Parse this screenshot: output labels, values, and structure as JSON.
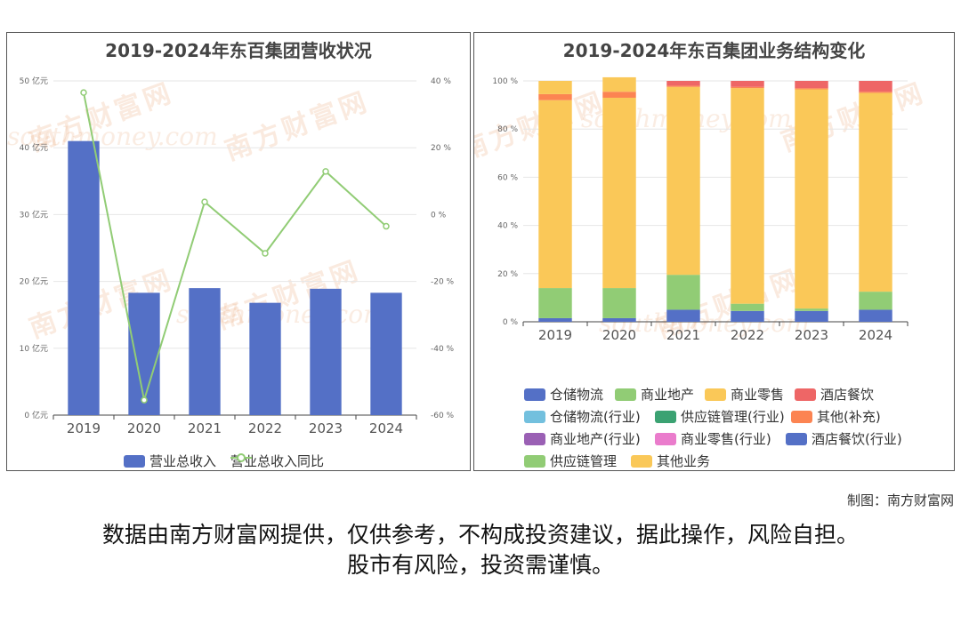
{
  "left_chart": {
    "title": "2019-2024年东百集团营收状况",
    "legend": {
      "bar": "营业总收入",
      "line": "营业总收入同比"
    },
    "colors": {
      "bar": "#5470c6",
      "line": "#91cc75"
    }
  },
  "right_chart": {
    "title": "2019-2024年东百集团业务结构变化",
    "legend": [
      {
        "label": "仓储物流",
        "color": "#5470c6"
      },
      {
        "label": "商业地产",
        "color": "#91cc75"
      },
      {
        "label": "商业零售",
        "color": "#fac858"
      },
      {
        "label": "酒店餐饮",
        "color": "#ee6666"
      },
      {
        "label": "仓储物流(行业)",
        "color": "#73c0de"
      },
      {
        "label": "供应链管理(行业)",
        "color": "#3ba272"
      },
      {
        "label": "其他(补充)",
        "color": "#fc8452"
      },
      {
        "label": "商业地产(行业)",
        "color": "#9a60b4"
      },
      {
        "label": "商业零售(行业)",
        "color": "#ea7ccc"
      },
      {
        "label": "酒店餐饮(行业)",
        "color": "#5470c6"
      },
      {
        "label": "供应链管理",
        "color": "#91cc75"
      },
      {
        "label": "其他业务",
        "color": "#fac858"
      }
    ]
  },
  "chart_data": [
    {
      "type": "bar",
      "title": "2019-2024年东百集团营收状况",
      "categories": [
        "2019",
        "2020",
        "2021",
        "2022",
        "2023",
        "2024"
      ],
      "series": [
        {
          "name": "营业总收入",
          "type": "bar",
          "axis": "left",
          "values": [
            41.0,
            18.3,
            19.0,
            16.8,
            18.9,
            18.3
          ]
        },
        {
          "name": "营业总收入同比",
          "type": "line",
          "axis": "right",
          "values": [
            36.5,
            -55.5,
            3.8,
            -11.6,
            12.9,
            -3.5
          ]
        }
      ],
      "y_left": {
        "ticks": [
          "0 亿元",
          "10 亿元",
          "20 亿元",
          "30 亿元",
          "40 亿元",
          "50 亿元"
        ],
        "ylim": [
          0,
          50
        ]
      },
      "y_right": {
        "ticks": [
          "-60 %",
          "-40 %",
          "-20 %",
          "0 %",
          "20 %",
          "40 %"
        ],
        "ylim": [
          -60,
          40
        ]
      },
      "grid": true,
      "legend_position": "bottom"
    },
    {
      "type": "bar",
      "stacked": true,
      "title": "2019-2024年东百集团业务结构变化",
      "categories": [
        "2019",
        "2020",
        "2021",
        "2022",
        "2023",
        "2024"
      ],
      "series": [
        {
          "name": "仓储物流",
          "color": "#5470c6",
          "values": [
            1.5,
            1.5,
            0,
            0,
            0,
            0
          ]
        },
        {
          "name": "商业地产",
          "color": "#91cc75",
          "values": [
            12.5,
            12.5,
            0,
            0,
            0,
            0
          ]
        },
        {
          "name": "商业零售",
          "color": "#fac858",
          "values": [
            78.0,
            79.0,
            0,
            0,
            0,
            0
          ]
        },
        {
          "name": "酒店餐饮",
          "color": "#ee6666",
          "values": [
            0,
            0,
            0,
            0,
            0,
            0
          ]
        },
        {
          "name": "仓储物流(行业)",
          "color": "#73c0de",
          "values": [
            0,
            0,
            0,
            0,
            0,
            0
          ]
        },
        {
          "name": "供应链管理(行业)",
          "color": "#3ba272",
          "values": [
            0,
            0,
            0,
            0,
            0,
            0
          ]
        },
        {
          "name": "其他(补充)",
          "color": "#fc8452",
          "values": [
            2.5,
            2.5,
            0,
            0,
            0,
            0
          ]
        },
        {
          "name": "商业地产(行业)",
          "color": "#9a60b4",
          "values": [
            0,
            0,
            0,
            0,
            0,
            0
          ]
        },
        {
          "name": "商业零售(行业)",
          "color": "#ea7ccc",
          "values": [
            0,
            0,
            0,
            0,
            0,
            0
          ]
        },
        {
          "name": "酒店餐饮(行业)",
          "color": "#5470c6",
          "values": [
            0,
            0,
            5.0,
            4.5,
            4.5,
            5.0
          ]
        },
        {
          "name": "供应链管理",
          "color": "#91cc75",
          "values": [
            0,
            0,
            14.5,
            3.0,
            1.0,
            7.5
          ]
        },
        {
          "name": "其他业务",
          "color": "#fac858",
          "values": [
            5.5,
            6.0,
            78.0,
            89.5,
            91.0,
            82.5
          ]
        },
        {
          "name": "其他(补充)",
          "color": "#fc8452",
          "values": [
            0,
            0,
            0.5,
            0.5,
            0.5,
            0.5
          ]
        },
        {
          "name": "酒店餐饮",
          "color": "#ee6666",
          "values": [
            0,
            0,
            2.0,
            2.5,
            3.0,
            4.5
          ]
        }
      ],
      "y_ticks": [
        "0 %",
        "20 %",
        "40 %",
        "60 %",
        "80 %",
        "100 %"
      ],
      "ylim": [
        0,
        100
      ],
      "grid": true,
      "legend_position": "bottom"
    }
  ],
  "footer": {
    "credit": "制图：南方财富网",
    "disclaimer_line1": "数据由南方财富网提供，仅供参考，不构成投资建议，据此操作，风险自担。",
    "disclaimer_line2": "股市有风险，投资需谨慎。"
  },
  "watermark": {
    "cn": "南方财富网",
    "en": "southmoney.com"
  }
}
